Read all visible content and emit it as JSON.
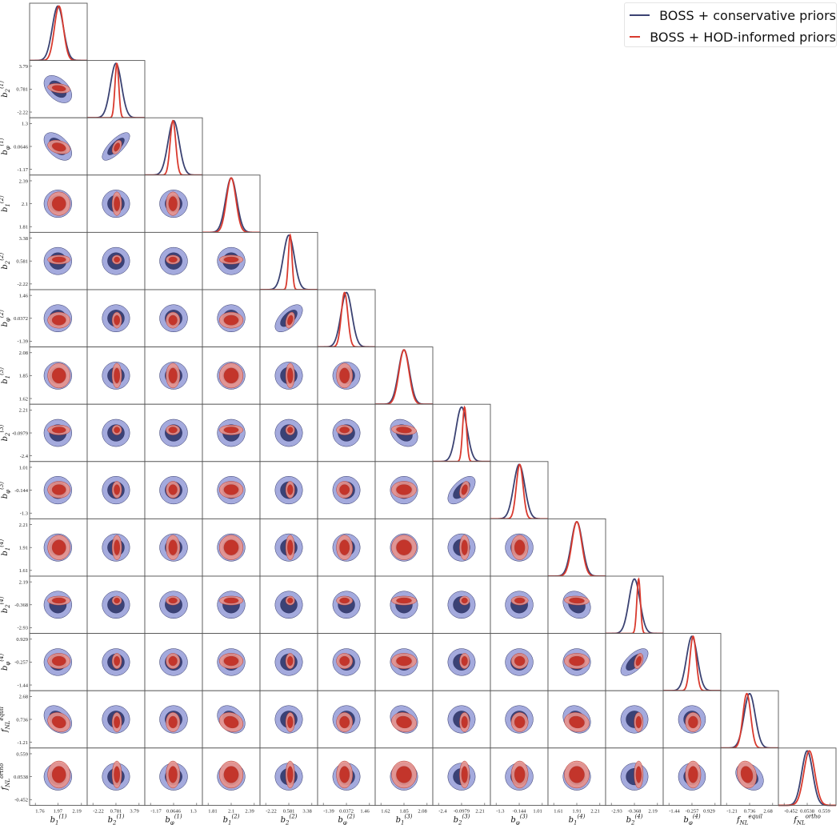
{
  "chart_data": {
    "type": "corner",
    "title": "",
    "legend_position": "top-right",
    "series": [
      {
        "key": "cons",
        "name": "BOSS + conservative priors",
        "line_color": "#3b4272",
        "fill_outer": "#a4aadd",
        "fill_inner": "#3b4275"
      },
      {
        "key": "hod",
        "name": "BOSS + HOD-informed priors",
        "line_color": "#d93a2e",
        "fill_outer": "#e8928c",
        "fill_inner": "#c3352b"
      }
    ],
    "parameters": [
      {
        "base": "b",
        "sub": "1",
        "sup": "(1)",
        "ticks": [
          1.76,
          1.97,
          2.19
        ],
        "tick_labels": [
          "1.76",
          "1.97",
          "2.19"
        ],
        "cons": {
          "mean": 1.97,
          "sigma": 0.052
        },
        "hod": {
          "mean": 1.98,
          "sigma": 0.042
        }
      },
      {
        "base": "b",
        "sub": "2",
        "sup": "(1)",
        "ticks": [
          -2.22,
          0.781,
          3.79
        ],
        "tick_labels": [
          "-2.22",
          "0.781",
          "3.79"
        ],
        "cons": {
          "mean": 0.781,
          "sigma": 0.72
        },
        "hod": {
          "mean": 0.9,
          "sigma": 0.25
        }
      },
      {
        "base": "b",
        "sub": "φ",
        "sup": "(1)",
        "ticks": [
          -1.17,
          0.0646,
          1.3
        ],
        "tick_labels": [
          "-1.17",
          "0.0646",
          "1.3"
        ],
        "cons": {
          "mean": 0.0646,
          "sigma": 0.3
        },
        "hod": {
          "mean": 0.03,
          "sigma": 0.15
        }
      },
      {
        "base": "b",
        "sub": "1",
        "sup": "(2)",
        "ticks": [
          1.81,
          2.1,
          2.39
        ],
        "tick_labels": [
          "1.81",
          "2.1",
          "2.39"
        ],
        "cons": {
          "mean": 2.1,
          "sigma": 0.07
        },
        "hod": {
          "mean": 2.1,
          "sigma": 0.06
        }
      },
      {
        "base": "b",
        "sub": "2",
        "sup": "(2)",
        "ticks": [
          -2.22,
          0.581,
          3.38
        ],
        "tick_labels": [
          "-2.22",
          "0.581",
          "3.38"
        ],
        "cons": {
          "mean": 0.581,
          "sigma": 0.67
        },
        "hod": {
          "mean": 0.75,
          "sigma": 0.22
        }
      },
      {
        "base": "b",
        "sub": "φ",
        "sup": "(2)",
        "ticks": [
          -1.39,
          0.0372,
          1.46
        ],
        "tick_labels": [
          "-1.39",
          "0.0372",
          "1.46"
        ],
        "cons": {
          "mean": 0.0372,
          "sigma": 0.34
        },
        "hod": {
          "mean": -0.08,
          "sigma": 0.2
        }
      },
      {
        "base": "b",
        "sub": "1",
        "sup": "(3)",
        "ticks": [
          1.62,
          1.85,
          2.08
        ],
        "tick_labels": [
          "1.62",
          "1.85",
          "2.08"
        ],
        "cons": {
          "mean": 1.85,
          "sigma": 0.055
        },
        "hod": {
          "mean": 1.85,
          "sigma": 0.05
        }
      },
      {
        "base": "b",
        "sub": "2",
        "sup": "(3)",
        "ticks": [
          -2.4,
          -0.0979,
          2.21
        ],
        "tick_labels": [
          "-2.4",
          "-0.0979",
          "2.21"
        ],
        "cons": {
          "mean": -0.0979,
          "sigma": 0.55
        },
        "hod": {
          "mean": 0.2,
          "sigma": 0.2
        }
      },
      {
        "base": "b",
        "sub": "φ",
        "sup": "(3)",
        "ticks": [
          -1.3,
          -0.144,
          1.01
        ],
        "tick_labels": [
          "-1.3",
          "-0.144",
          "1.01"
        ],
        "cons": {
          "mean": -0.144,
          "sigma": 0.28
        },
        "hod": {
          "mean": -0.12,
          "sigma": 0.17
        }
      },
      {
        "base": "b",
        "sub": "1",
        "sup": "(4)",
        "ticks": [
          1.61,
          1.91,
          2.21
        ],
        "tick_labels": [
          "1.61",
          "1.91",
          "2.21"
        ],
        "cons": {
          "mean": 1.91,
          "sigma": 0.072
        },
        "hod": {
          "mean": 1.91,
          "sigma": 0.065
        }
      },
      {
        "base": "b",
        "sub": "2",
        "sup": "(4)",
        "ticks": [
          -2.93,
          -0.368,
          2.19
        ],
        "tick_labels": [
          "-2.93",
          "-0.368",
          "2.19"
        ],
        "cons": {
          "mean": -0.368,
          "sigma": 0.61
        },
        "hod": {
          "mean": 0.1,
          "sigma": 0.2
        }
      },
      {
        "base": "b",
        "sub": "φ",
        "sup": "(4)",
        "ticks": [
          -1.44,
          -0.257,
          0.929
        ],
        "tick_labels": [
          "-1.44",
          "-0.257",
          "0.929"
        ],
        "cons": {
          "mean": -0.257,
          "sigma": 0.28
        },
        "hod": {
          "mean": -0.2,
          "sigma": 0.16
        }
      },
      {
        "base": "f",
        "sub": "NL",
        "sup": "equil",
        "ticks": [
          -1.21,
          0.736,
          2.68
        ],
        "tick_labels": [
          "-1.21",
          "0.736",
          "2.68"
        ],
        "cons": {
          "mean": 0.736,
          "sigma": 0.47
        },
        "hod": {
          "mean": 0.5,
          "sigma": 0.33
        }
      },
      {
        "base": "f",
        "sub": "NL",
        "sup": "ortho",
        "ticks": [
          -0.452,
          0.0538,
          0.559
        ],
        "tick_labels": [
          "-0.452",
          "0.0538",
          "0.559"
        ],
        "cons": {
          "mean": 0.0538,
          "sigma": 0.12
        },
        "hod": {
          "mean": 0.1,
          "sigma": 0.12
        }
      }
    ],
    "correlations": [
      [
        1,
        0,
        -0.45
      ],
      [
        2,
        0,
        -0.5
      ],
      [
        2,
        1,
        0.75
      ],
      [
        5,
        4,
        0.6
      ],
      [
        8,
        7,
        0.6
      ],
      [
        11,
        10,
        0.65
      ],
      [
        12,
        0,
        -0.3
      ],
      [
        12,
        3,
        -0.3
      ],
      [
        12,
        6,
        -0.2
      ],
      [
        12,
        9,
        -0.2
      ],
      [
        13,
        12,
        -0.3
      ],
      [
        7,
        6,
        -0.3
      ],
      [
        10,
        9,
        -0.2
      ]
    ],
    "contour_levels": [
      "68%",
      "95%"
    ]
  },
  "legend": {
    "items": [
      {
        "label": "BOSS + conservative priors"
      },
      {
        "label": "BOSS + HOD-informed priors"
      }
    ]
  }
}
